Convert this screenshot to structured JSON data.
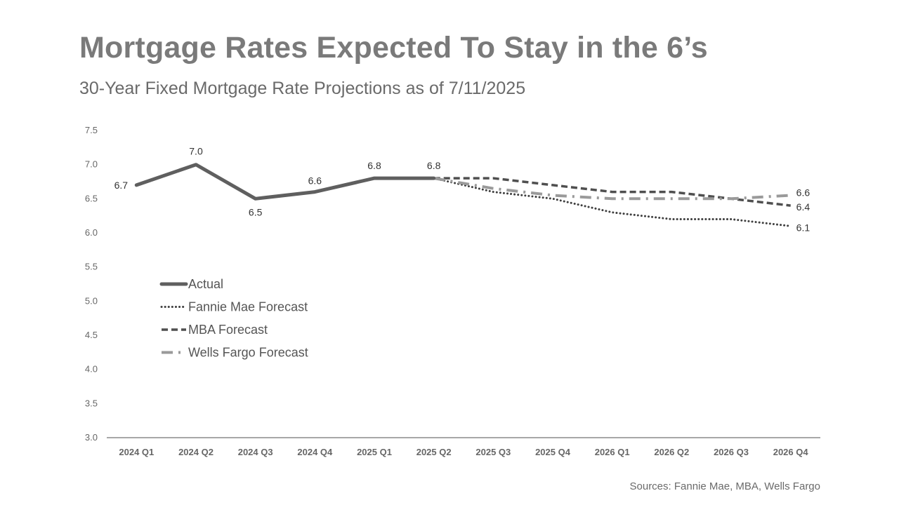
{
  "title": "Mortgage Rates Expected To Stay in the 6’s",
  "subtitle": "30-Year Fixed Mortgage Rate Projections as of 7/11/2025",
  "source": "Sources: Fannie Mae, MBA, Wells Fargo",
  "chart_data": {
    "type": "line",
    "categories": [
      "2024 Q1",
      "2024 Q2",
      "2024 Q3",
      "2024 Q4",
      "2025 Q1",
      "2025 Q2",
      "2025 Q3",
      "2025 Q4",
      "2026 Q1",
      "2026 Q2",
      "2026 Q3",
      "2026 Q4"
    ],
    "ylim": [
      3.0,
      7.5
    ],
    "yticks": [
      "3.0",
      "3.5",
      "4.0",
      "4.5",
      "5.0",
      "5.5",
      "6.0",
      "6.5",
      "7.0",
      "7.5"
    ],
    "grid": false,
    "legend_position": "left-middle",
    "series": [
      {
        "name": "Actual",
        "style": "solid",
        "color": "#5f5f5f",
        "values": [
          6.7,
          7.0,
          6.5,
          6.6,
          6.8,
          6.8,
          null,
          null,
          null,
          null,
          null,
          null
        ],
        "data_labels": [
          "6.7",
          "7.0",
          "6.5",
          "6.6",
          "6.8",
          "6.8",
          null,
          null,
          null,
          null,
          null,
          null
        ]
      },
      {
        "name": "Fannie Mae Forecast",
        "style": "dotted",
        "color": "#3f3f3f",
        "values": [
          null,
          null,
          null,
          null,
          null,
          6.8,
          6.6,
          6.5,
          6.3,
          6.2,
          6.2,
          6.1
        ],
        "data_labels": [
          null,
          null,
          null,
          null,
          null,
          null,
          null,
          null,
          null,
          null,
          null,
          "6.1"
        ]
      },
      {
        "name": "MBA Forecast",
        "style": "dashed",
        "color": "#4f4f4f",
        "values": [
          null,
          null,
          null,
          null,
          null,
          6.8,
          6.8,
          6.7,
          6.6,
          6.6,
          6.5,
          6.4
        ],
        "data_labels": [
          null,
          null,
          null,
          null,
          null,
          null,
          null,
          null,
          null,
          null,
          null,
          "6.4"
        ]
      },
      {
        "name": "Wells Fargo Forecast",
        "style": "dash-dot",
        "color": "#9a9a9a",
        "values": [
          null,
          null,
          null,
          null,
          null,
          6.8,
          6.65,
          6.55,
          6.5,
          6.5,
          6.5,
          6.55
        ],
        "data_labels": [
          null,
          null,
          null,
          null,
          null,
          null,
          null,
          null,
          null,
          null,
          null,
          "6.6"
        ]
      }
    ]
  }
}
